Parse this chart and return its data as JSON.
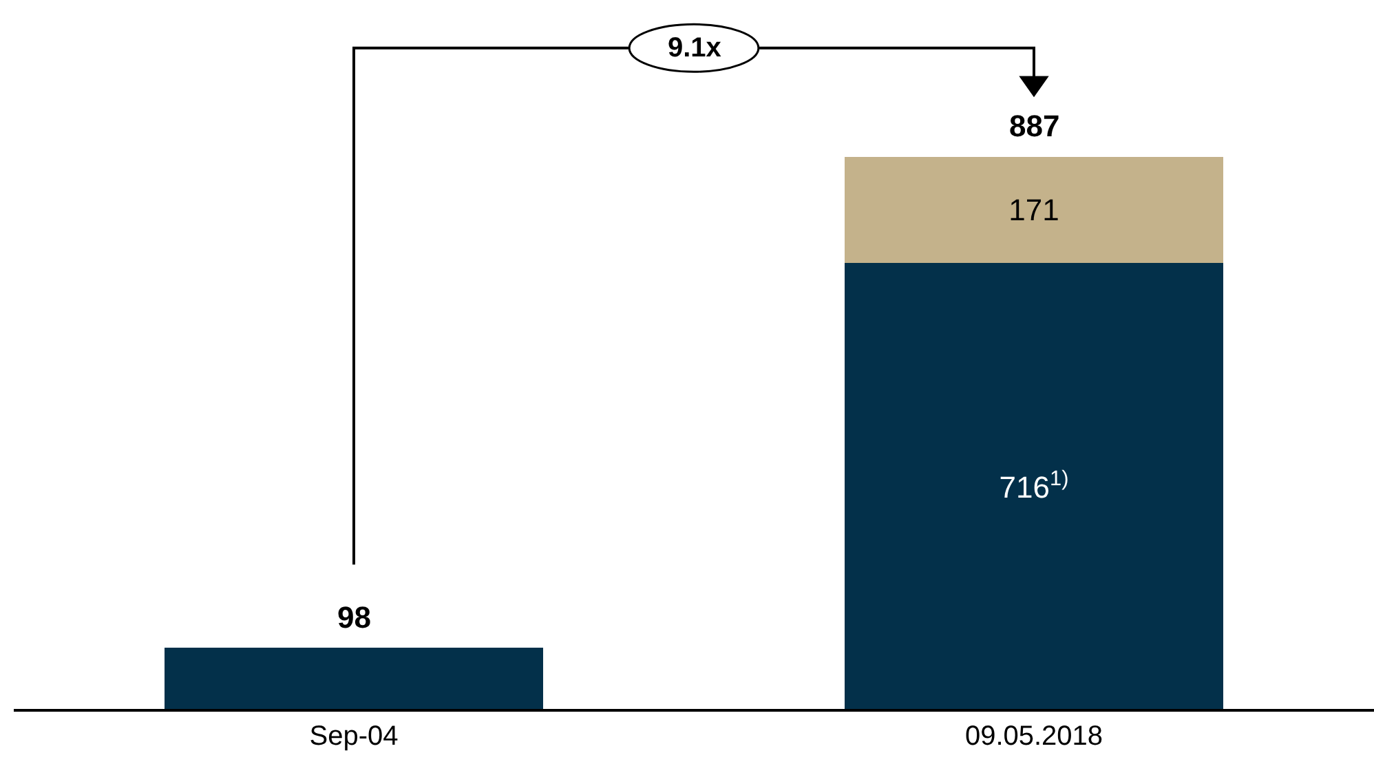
{
  "chart_data": {
    "type": "bar",
    "stacked": true,
    "categories": [
      "Sep-04",
      "09.05.2018"
    ],
    "series": [
      {
        "color": "#03304a",
        "values": [
          98,
          716
        ],
        "value_labels": [
          null,
          "716$^{1)}$"
        ]
      },
      {
        "color": "#c4b28b",
        "values": [
          null,
          171
        ],
        "value_labels": [
          null,
          "171"
        ]
      }
    ],
    "totals": [
      "98",
      "887"
    ],
    "annotations": [
      "9.1x"
    ]
  }
}
